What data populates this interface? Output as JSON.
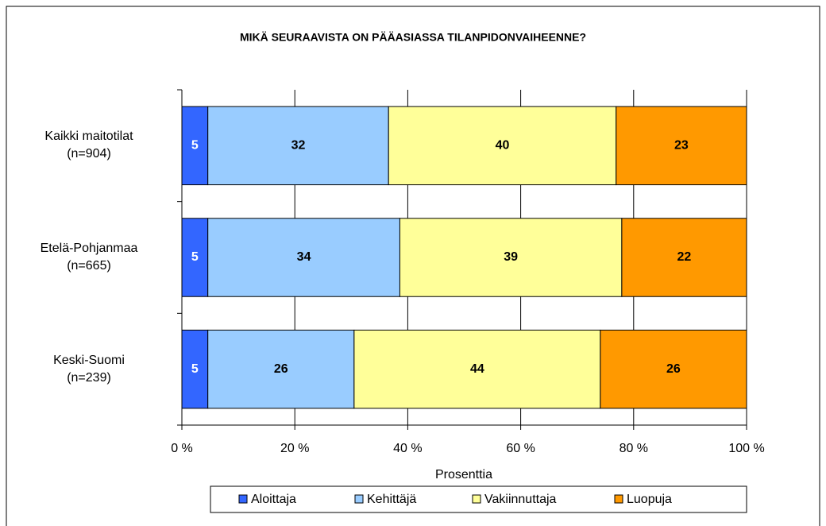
{
  "chart_data": {
    "type": "stacked_bar_horizontal",
    "title": "MIKÄ SEURAAVISTA ON PÄÄASIASSA TILANPIDONVAIHEENNE?",
    "x_label": "Prosenttia",
    "categories": [
      "Kaikki maitotilat\n(n=904)",
      "Etelä-Pohjanmaa\n(n=665)",
      "Keski-Suomi\n(n=239)"
    ],
    "series": [
      {
        "name": "Aloittaja",
        "color": "#3366ff",
        "values": [
          4.6,
          4.6,
          4.6
        ],
        "value_labels": [
          "5",
          "5",
          "5"
        ]
      },
      {
        "name": "Kehittäjä",
        "color": "#99ccff",
        "values": [
          32.0,
          34.0,
          25.9
        ],
        "value_labels": [
          "32",
          "34",
          "26"
        ]
      },
      {
        "name": "Vakiinnuttaja",
        "color": "#ffff99",
        "values": [
          40.3,
          39.3,
          43.6
        ],
        "value_labels": [
          "40",
          "39",
          "44"
        ]
      },
      {
        "name": "Luopuja",
        "color": "#ff9900",
        "values": [
          23.1,
          22.1,
          25.9
        ],
        "value_labels": [
          "23",
          "22",
          "26"
        ]
      }
    ],
    "xlim": [
      0,
      100
    ],
    "xticks": [
      {
        "value": 0,
        "label": "0 %"
      },
      {
        "value": 20,
        "label": "20 %"
      },
      {
        "value": 40,
        "label": "40 %"
      },
      {
        "value": 60,
        "label": "60 %"
      },
      {
        "value": 80,
        "label": "80 %"
      },
      {
        "value": 100,
        "label": "100 %"
      }
    ],
    "grid": true
  }
}
